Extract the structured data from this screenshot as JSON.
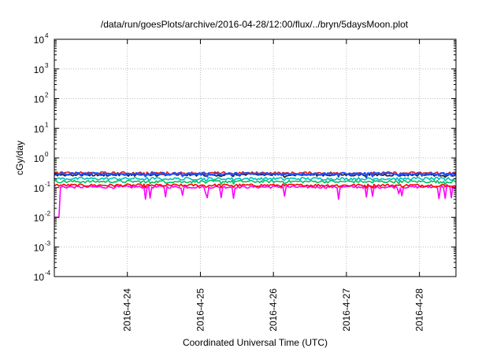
{
  "chart_data": {
    "type": "line",
    "title": "/data/run/goesPlots/archive/2016-04-28/12:00/flux/../bryn/5daysMoon.plot",
    "xlabel": "Coordinated Universal Time (UTC)",
    "ylabel": "cGy/day",
    "yscale": "log",
    "ylim": [
      0.0001,
      10000
    ],
    "yticks": [
      {
        "base": "10",
        "exp": "4",
        "value": 10000
      },
      {
        "base": "10",
        "exp": "3",
        "value": 1000
      },
      {
        "base": "10",
        "exp": "2",
        "value": 100
      },
      {
        "base": "10",
        "exp": "1",
        "value": 10
      },
      {
        "base": "10",
        "exp": "0",
        "value": 1
      },
      {
        "base": "10",
        "exp": "-1",
        "value": 0.1
      },
      {
        "base": "10",
        "exp": "-2",
        "value": 0.01
      },
      {
        "base": "10",
        "exp": "-3",
        "value": 0.001
      },
      {
        "base": "10",
        "exp": "-4",
        "value": 0.0001
      }
    ],
    "xlim": [
      "2016-04-23 00:00",
      "2016-04-28 12:00"
    ],
    "xticks": [
      "2016-4-24",
      "2016-4-25",
      "2016-4-26",
      "2016-4-27",
      "2016-4-28"
    ],
    "grid": true,
    "series": [
      {
        "color": "#ff00ff",
        "base_value": 0.105,
        "min_value": 0.01
      },
      {
        "color": "#ff0000",
        "base_value": 0.12
      },
      {
        "color": "#00c060",
        "base_value": 0.16
      },
      {
        "color": "#00bfbf",
        "base_value": 0.2
      },
      {
        "color": "#1a1a1a",
        "base_value": 0.27
      },
      {
        "color": "#e02020",
        "base_value": 0.31
      },
      {
        "color": "#2050ff",
        "base_value": 0.29
      }
    ]
  }
}
